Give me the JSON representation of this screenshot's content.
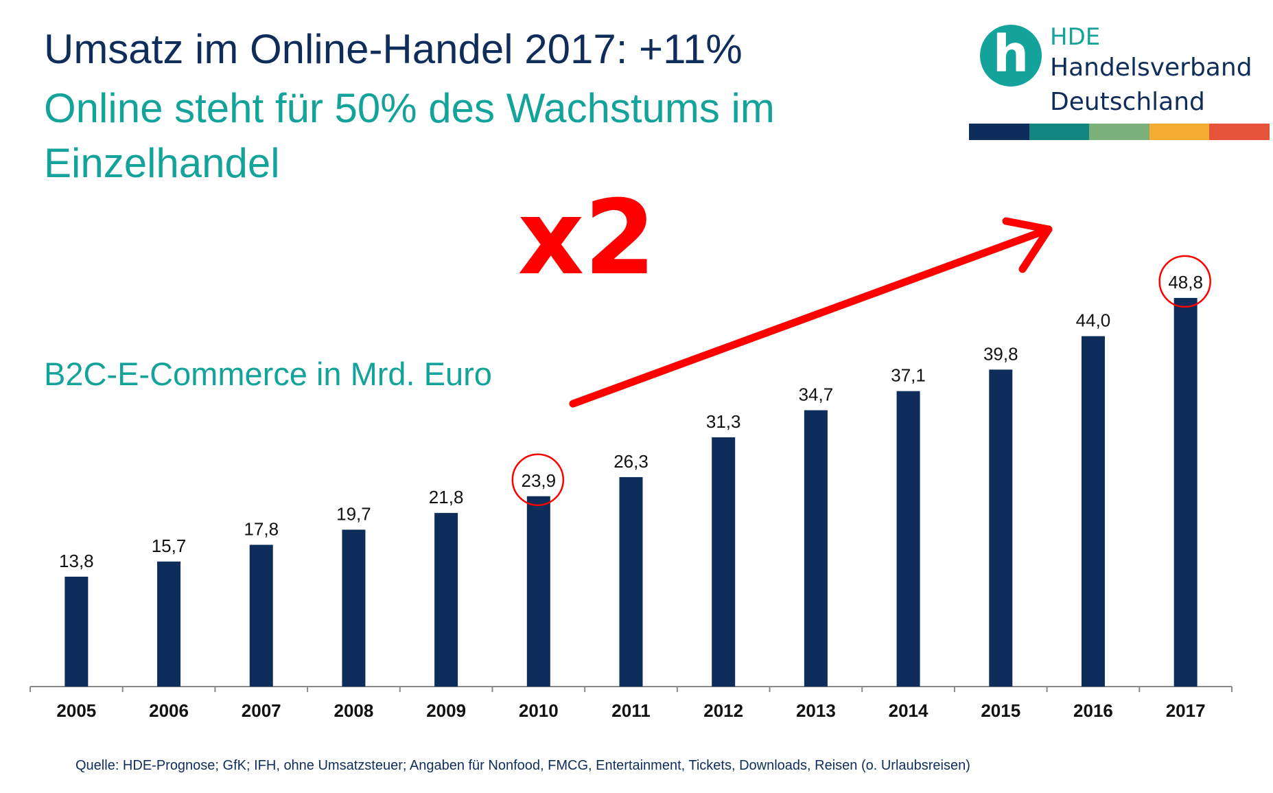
{
  "header": {
    "title": "Umsatz im Online-Handel 2017: +11%",
    "subtitle": "Online steht für 50% des Wachstums im Einzelhandel"
  },
  "logo": {
    "mark": "h",
    "line1": "HDE",
    "line2": "Handelsverband",
    "line3": "Deutschland",
    "stripe_colors": [
      "#0e2d5a",
      "#13857f",
      "#7bb07a",
      "#f5ac30",
      "#e5533a"
    ]
  },
  "annotation": {
    "multiplier": "x2",
    "color": "#ff0000",
    "highlighted_years": [
      "2010",
      "2017"
    ]
  },
  "source": "Quelle: HDE-Prognose; GfK; IFH, ohne Umsatzsteuer; Angaben für Nonfood, FMCG, Entertainment, Tickets, Downloads, Reisen (o. Urlaubsreisen)",
  "colors": {
    "bar": "#0e2d5a",
    "title": "#0e2d5a",
    "accent": "#13a39a"
  },
  "chart_data": {
    "type": "bar",
    "title": "B2C-E-Commerce in Mrd. Euro",
    "categories": [
      "2005",
      "2006",
      "2007",
      "2008",
      "2009",
      "2010",
      "2011",
      "2012",
      "2013",
      "2014",
      "2015",
      "2016",
      "2017"
    ],
    "values": [
      13.8,
      15.7,
      17.8,
      19.7,
      21.8,
      23.9,
      26.3,
      31.3,
      34.7,
      37.1,
      39.8,
      44.0,
      48.8
    ],
    "value_labels": [
      "13,8",
      "15,7",
      "17,8",
      "19,7",
      "21,8",
      "23,9",
      "26,3",
      "31,3",
      "34,7",
      "37,1",
      "39,8",
      "44,0",
      "48,8"
    ],
    "xlabel": "",
    "ylabel": "",
    "ylim": [
      0,
      50
    ],
    "grid": false,
    "legend": "none"
  }
}
